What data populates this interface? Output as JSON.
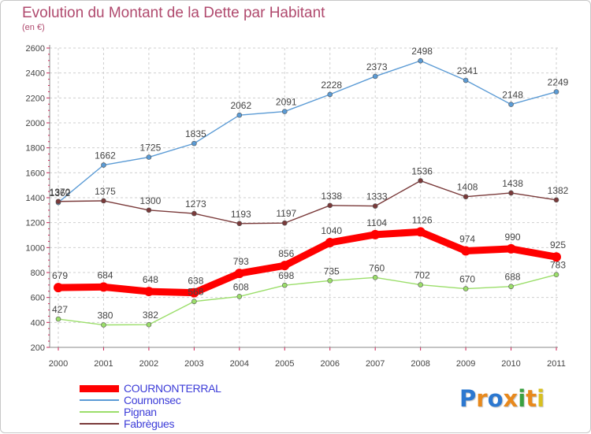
{
  "title": "Evolution du Montant de la Dette par Habitant",
  "subtitle": "(en €)",
  "logo": {
    "text": "Proxiti",
    "letters": [
      "P",
      "r",
      "o",
      "x",
      "i",
      "t",
      "i"
    ]
  },
  "chart_data": {
    "type": "line",
    "title": "Evolution du Montant de la Dette par Habitant",
    "subtitle": "(en €)",
    "xlabel": "",
    "ylabel": "",
    "x": [
      "2000",
      "2001",
      "2002",
      "2003",
      "2004",
      "2005",
      "2006",
      "2007",
      "2008",
      "2009",
      "2010",
      "2011"
    ],
    "ylim": [
      200,
      2600
    ],
    "yticks": [
      200,
      400,
      600,
      800,
      1000,
      1200,
      1400,
      1600,
      1800,
      2000,
      2200,
      2400,
      2600
    ],
    "grid": true,
    "legend_position": "bottom-left",
    "series": [
      {
        "name": "COURNONTERRAL",
        "color": "#ff0000",
        "emphasis": true,
        "values": [
          679,
          684,
          648,
          638,
          793,
          856,
          1040,
          1104,
          1126,
          974,
          990,
          925
        ]
      },
      {
        "name": "Cournonsec",
        "color": "#5b9bd5",
        "emphasis": false,
        "values": [
          1362,
          1662,
          1725,
          1835,
          2062,
          2091,
          2228,
          2373,
          2498,
          2341,
          2148,
          2249
        ]
      },
      {
        "name": "Pignan",
        "color": "#9bde6a",
        "emphasis": false,
        "values": [
          427,
          380,
          382,
          568,
          608,
          698,
          735,
          760,
          702,
          670,
          688,
          783
        ]
      },
      {
        "name": "Fabrègues",
        "color": "#7a3a3a",
        "emphasis": false,
        "values": [
          1370,
          1375,
          1300,
          1273,
          1193,
          1197,
          1338,
          1333,
          1536,
          1408,
          1438,
          1382
        ]
      }
    ]
  }
}
